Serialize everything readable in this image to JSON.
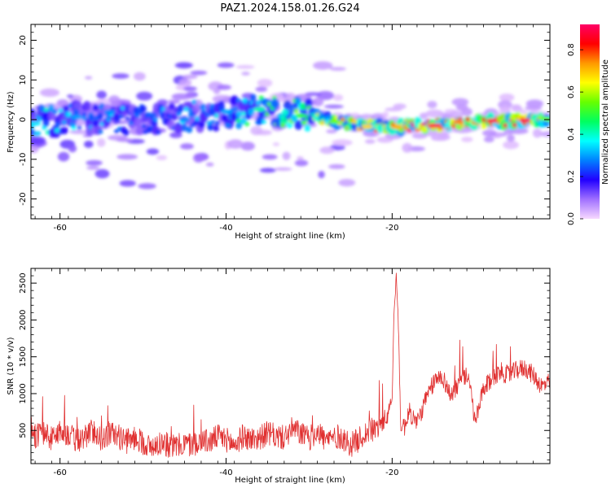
{
  "title": "PAZ1.2024.158.01.26.G24",
  "chart_data": [
    {
      "type": "heatmap",
      "xlabel": "Height of straight line (km)",
      "ylabel": "Frequency (Hz)",
      "xlim": [
        -63.5,
        -1
      ],
      "ylim": [
        -25,
        24
      ],
      "xticks": [
        -60,
        -40,
        -20
      ],
      "xtick_labels": [
        "-60",
        "-40",
        "-20"
      ],
      "yticks": [
        -20,
        -10,
        0,
        10,
        20
      ],
      "ytick_labels": [
        "-20",
        "-10",
        "0",
        "10",
        "20"
      ],
      "ridge": [
        {
          "x": -63,
          "f": -1.0
        },
        {
          "x": -58,
          "f": 0.5
        },
        {
          "x": -50,
          "f": 0.0
        },
        {
          "x": -40,
          "f": 1.5
        },
        {
          "x": -35,
          "f": 2.5
        },
        {
          "x": -30,
          "f": 0.8
        },
        {
          "x": -25,
          "f": -1.2
        },
        {
          "x": -20,
          "f": -2.0
        },
        {
          "x": -15,
          "f": -1.4
        },
        {
          "x": -10,
          "f": -0.5
        },
        {
          "x": -5,
          "f": -0.2
        },
        {
          "x": -1,
          "f": 0.0
        }
      ],
      "peaks": [
        {
          "x": -63,
          "f": -1.0,
          "a": 0.35
        },
        {
          "x": -58,
          "f": 0.6,
          "a": 0.3
        },
        {
          "x": -54,
          "f": 2.0,
          "a": 0.28
        },
        {
          "x": -49,
          "f": 1.2,
          "a": 0.25
        },
        {
          "x": -45,
          "f": 0.0,
          "a": 0.28
        },
        {
          "x": -40,
          "f": 2.0,
          "a": 0.3
        },
        {
          "x": -36,
          "f": 2.6,
          "a": 0.42
        },
        {
          "x": -31,
          "f": 1.0,
          "a": 0.5
        },
        {
          "x": -27,
          "f": -0.5,
          "a": 0.55
        },
        {
          "x": -23,
          "f": -1.8,
          "a": 0.68
        },
        {
          "x": -19.5,
          "f": -1.8,
          "a": 0.72
        },
        {
          "x": -15,
          "f": -1.5,
          "a": 0.9
        },
        {
          "x": -12,
          "f": -0.6,
          "a": 0.75
        },
        {
          "x": -8,
          "f": -0.3,
          "a": 0.88
        },
        {
          "x": -4,
          "f": -0.2,
          "a": 0.9
        },
        {
          "x": -1.5,
          "f": 0.2,
          "a": 0.55
        }
      ],
      "colorbar": {
        "label": "Normalized spectral amplitude",
        "range": [
          0,
          0.92
        ],
        "ticks": [
          0.0,
          0.2,
          0.4,
          0.6,
          0.8
        ],
        "tick_labels": [
          "0.0",
          "0.2",
          "0.4",
          "0.6",
          "0.8"
        ],
        "colormap": [
          "#f7d8ff",
          "#a070ff",
          "#2200ff",
          "#0080ff",
          "#00ffff",
          "#00ff60",
          "#66ff00",
          "#ffff00",
          "#ff9900",
          "#ff0000",
          "#ff0066"
        ]
      }
    },
    {
      "type": "line",
      "xlabel": "Height of straight line (km)",
      "ylabel": "SNR (10 * v/v)",
      "xlim": [
        -63.5,
        -1
      ],
      "ylim": [
        50,
        2700
      ],
      "xticks": [
        -60,
        -40,
        -20
      ],
      "xtick_labels": [
        "-60",
        "-40",
        "-20"
      ],
      "yticks": [
        500,
        1000,
        1500,
        2000,
        2500
      ],
      "ytick_labels": [
        "500",
        "1000",
        "1500",
        "2000",
        "2500"
      ],
      "color": "#e03030",
      "x": [
        -63.5,
        -63,
        -62,
        -61,
        -60,
        -59,
        -58,
        -57,
        -56,
        -55,
        -54,
        -53,
        -52,
        -51,
        -50,
        -49,
        -48,
        -47,
        -46,
        -45,
        -44,
        -43,
        -42,
        -41,
        -40,
        -39,
        -38,
        -37,
        -36,
        -35,
        -34,
        -33,
        -32,
        -31,
        -30,
        -29,
        -28,
        -27,
        -26,
        -25,
        -24,
        -23,
        -22,
        -21,
        -20.5,
        -20,
        -19.8,
        -19.5,
        -19.2,
        -19,
        -18.5,
        -18,
        -17,
        -16,
        -15,
        -14,
        -13,
        -12,
        -11,
        -10.5,
        -10,
        -9,
        -8,
        -7,
        -6,
        -5,
        -4,
        -3,
        -2,
        -1
      ],
      "y": [
        600,
        420,
        480,
        380,
        500,
        450,
        350,
        420,
        500,
        380,
        470,
        420,
        350,
        400,
        340,
        260,
        340,
        300,
        280,
        320,
        300,
        380,
        340,
        420,
        380,
        300,
        420,
        380,
        400,
        460,
        420,
        400,
        520,
        460,
        380,
        500,
        360,
        420,
        400,
        300,
        380,
        480,
        520,
        640,
        700,
        900,
        2000,
        2600,
        1800,
        600,
        550,
        760,
        600,
        900,
        1150,
        1250,
        980,
        1130,
        1250,
        1000,
        600,
        1050,
        1200,
        1300,
        1250,
        1320,
        1350,
        1250,
        1100,
        1150
      ]
    }
  ]
}
